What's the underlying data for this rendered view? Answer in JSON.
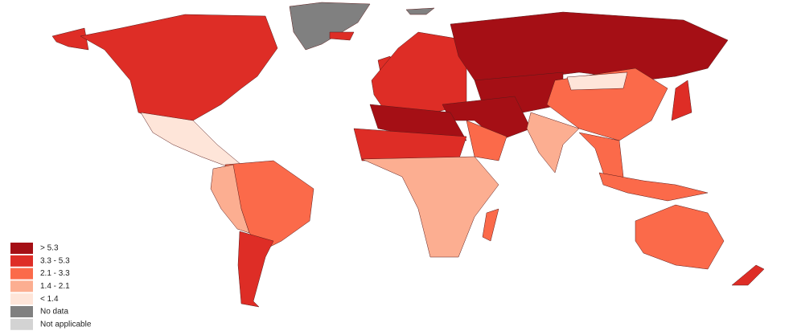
{
  "legend": {
    "items": [
      {
        "label": "> 5.3",
        "color": "#a50f15"
      },
      {
        "label": "3.3 - 5.3",
        "color": "#de2d26"
      },
      {
        "label": "2.1 - 3.3",
        "color": "#fb6a4a"
      },
      {
        "label": "1.4 - 2.1",
        "color": "#fcae91"
      },
      {
        "label": "< 1.4",
        "color": "#fee5d9"
      },
      {
        "label": "No data",
        "color": "#808080"
      },
      {
        "label": "Not applicable",
        "color": "#d3d3d3"
      }
    ]
  }
}
